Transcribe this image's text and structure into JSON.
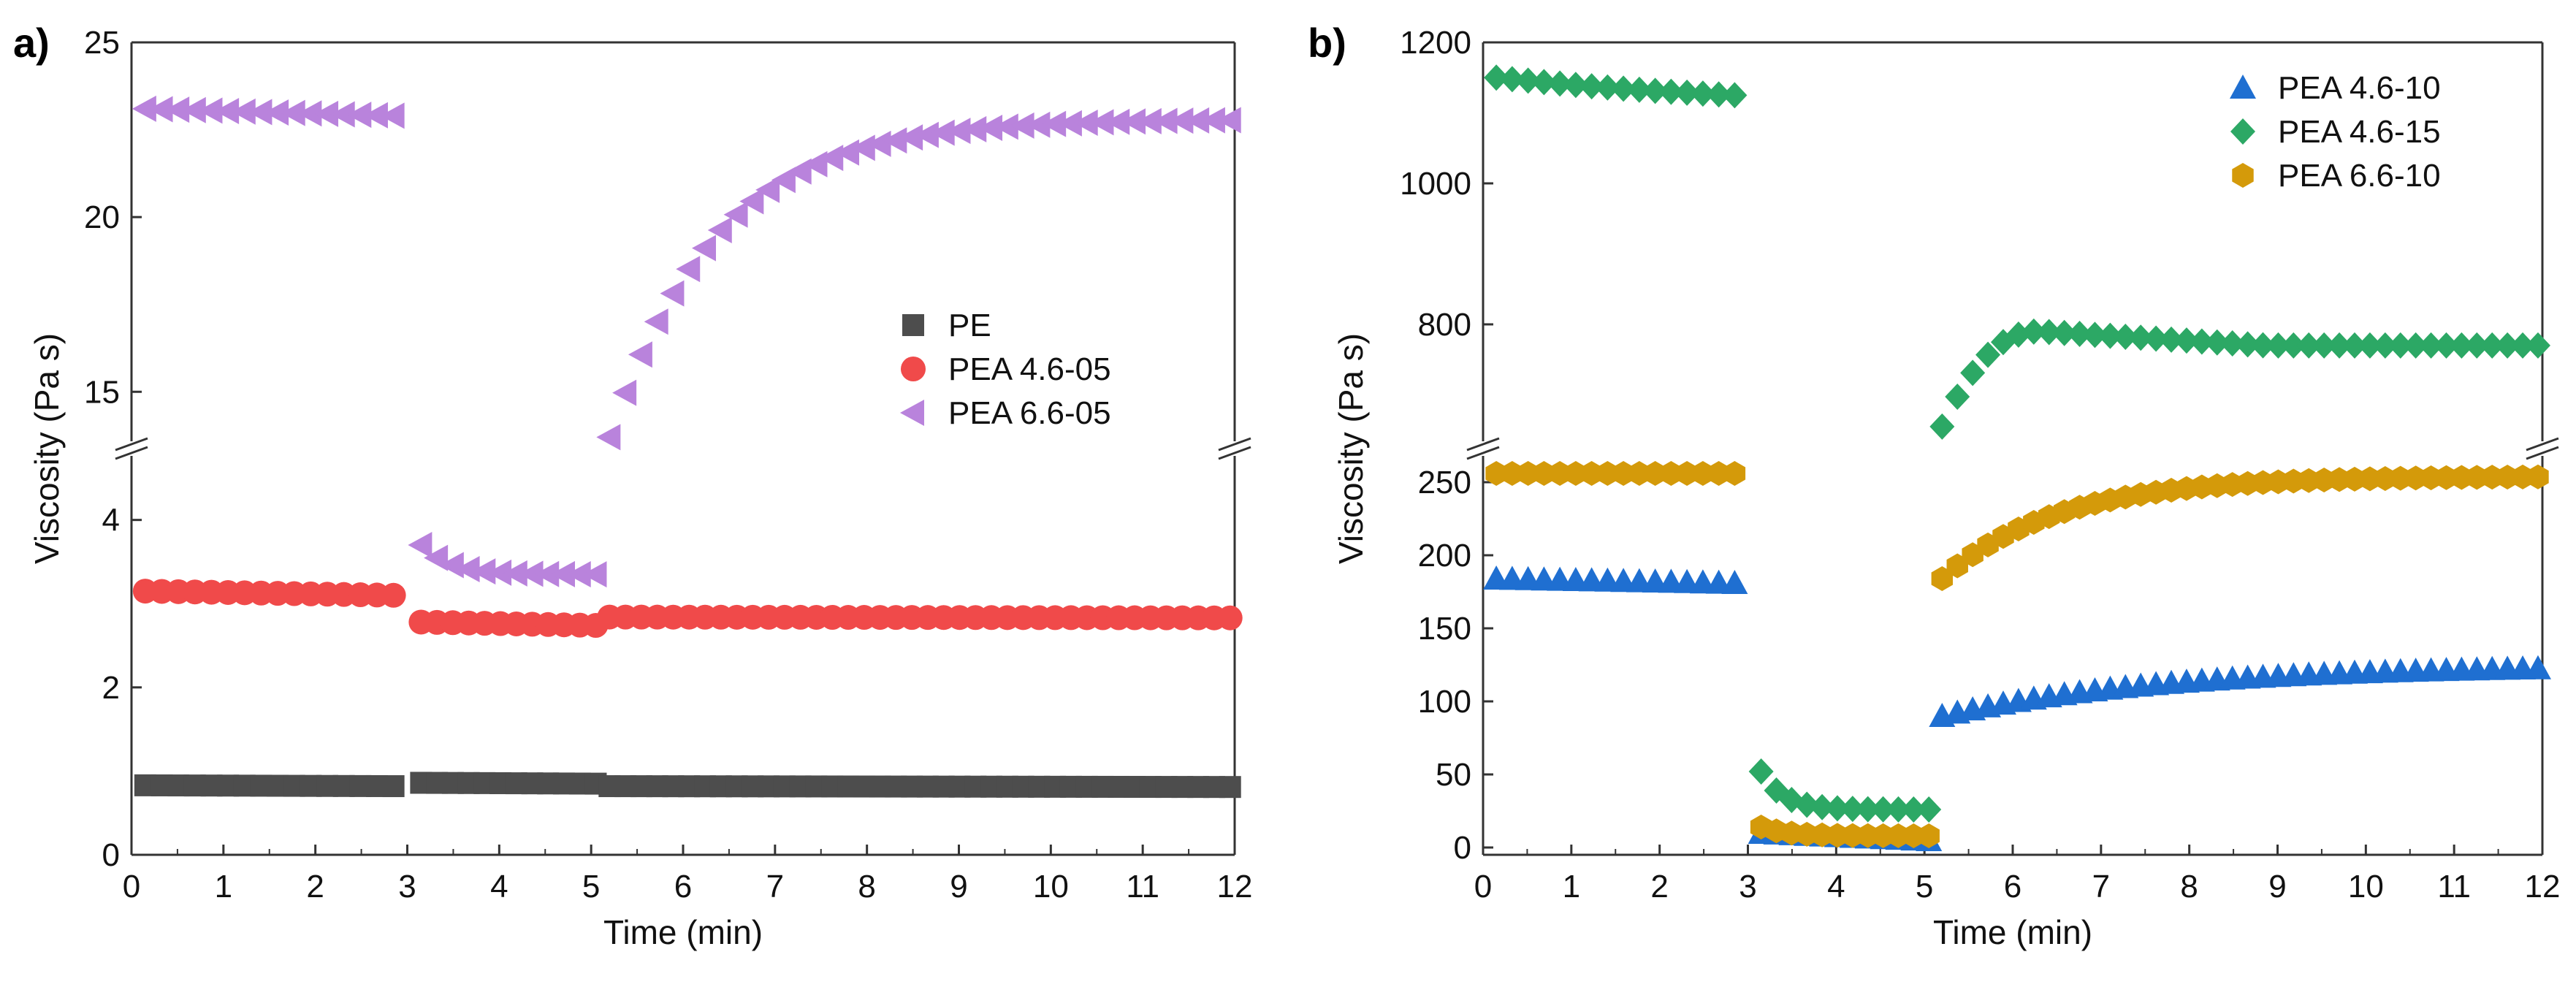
{
  "chart_data": [
    {
      "panel_label": "a)",
      "type": "scatter",
      "broken_y_axis": true,
      "xlabel": "Time (min)",
      "ylabel": "Viscosity (Pa s)",
      "xlim": [
        0,
        12
      ],
      "xticks": [
        "0",
        "1",
        "2",
        "3",
        "4",
        "5",
        "6",
        "7",
        "8",
        "9",
        "10",
        "11",
        "12"
      ],
      "y_segments": [
        {
          "range": [
            0,
            4.8
          ],
          "ticks": [
            0,
            2,
            4
          ]
        },
        {
          "range": [
            13.5,
            25
          ],
          "ticks": [
            15,
            20,
            25
          ]
        }
      ],
      "legend_position": "center-right",
      "series": [
        {
          "name": "PE",
          "marker": "square",
          "color": "#4d4d4d",
          "segments": [
            {
              "x0": 0.15,
              "x1": 2.85,
              "n": 16,
              "y": 0.83,
              "y_end": 0.82
            },
            {
              "x0": 3.15,
              "x1": 5.05,
              "n": 12,
              "y": 0.86,
              "y_end": 0.85
            },
            {
              "x0": 5.2,
              "x1": 11.95,
              "n": 40,
              "y": 0.82,
              "y_end": 0.81
            }
          ]
        },
        {
          "name": "PEA 4.6-05",
          "marker": "circle",
          "color": "#f04a4a",
          "segments": [
            {
              "x0": 0.15,
              "x1": 2.85,
              "n": 16,
              "y": 3.15,
              "y_end": 3.1
            },
            {
              "x0": 3.15,
              "x1": 5.05,
              "n": 12,
              "y": 2.78,
              "y_end": 2.74
            },
            {
              "x0": 5.2,
              "x1": 11.95,
              "n": 40,
              "y": 2.84,
              "y_end": 2.83
            }
          ]
        },
        {
          "name": "PEA 6.6-05",
          "marker": "triangle-left",
          "color": "#b983dc",
          "segments": [
            {
              "x0": 0.15,
              "x1": 2.85,
              "n": 16,
              "y": 23.1,
              "y_end": 22.9
            },
            {
              "x0": 3.15,
              "x1": 5.05,
              "n": 12,
              "y": 3.7,
              "y_end": 3.35,
              "decay": 0.3
            },
            {
              "x0": 5.2,
              "x1": 11.95,
              "n": 40,
              "y": 13.7,
              "y_end": 22.8,
              "plateau": 22.8,
              "tau": 1.15
            }
          ]
        }
      ]
    },
    {
      "panel_label": "b)",
      "type": "scatter",
      "broken_y_axis": true,
      "xlabel": "Time (min)",
      "ylabel": "Viscosity (Pa s)",
      "xlim": [
        0,
        12
      ],
      "xticks": [
        "0",
        "1",
        "2",
        "3",
        "4",
        "5",
        "6",
        "7",
        "8",
        "9",
        "10",
        "11",
        "12"
      ],
      "y_segments": [
        {
          "range": [
            -5,
            270
          ],
          "ticks": [
            0,
            50,
            100,
            150,
            200,
            250
          ]
        },
        {
          "range": [
            630,
            1200
          ],
          "ticks": [
            800,
            1000,
            1200
          ]
        }
      ],
      "legend_position": "top-right",
      "series": [
        {
          "name": "PEA 4.6-10",
          "marker": "triangle-up",
          "color": "#1f6fd1",
          "segments": [
            {
              "x0": 0.15,
              "x1": 2.85,
              "n": 16,
              "y": 184,
              "y_end": 181
            },
            {
              "x0": 3.15,
              "x1": 5.05,
              "n": 12,
              "y": 10,
              "y_end": 5
            },
            {
              "x0": 5.2,
              "x1": 11.95,
              "n": 40,
              "y": 90,
              "y_end": 123,
              "plateau": 125,
              "tau": 2.5
            }
          ]
        },
        {
          "name": "PEA 4.6-15",
          "marker": "diamond",
          "color": "#2ca865",
          "segments": [
            {
              "x0": 0.15,
              "x1": 2.85,
              "n": 16,
              "y": 1150,
              "y_end": 1125,
              "dip": 1122
            },
            {
              "x0": 3.15,
              "x1": 5.05,
              "n": 12,
              "y": 52,
              "y_end": 26,
              "decay": 0.25
            },
            {
              "x0": 5.2,
              "x1": 11.95,
              "n": 40,
              "y": 655,
              "y_end": 770,
              "peak": 790,
              "peak_x": 6.3
            }
          ]
        },
        {
          "name": "PEA 6.6-10",
          "marker": "hexagon",
          "color": "#d49a0a",
          "segments": [
            {
              "x0": 0.15,
              "x1": 2.85,
              "n": 16,
              "y": 256,
              "y_end": 256
            },
            {
              "x0": 3.15,
              "x1": 5.05,
              "n": 12,
              "y": 14,
              "y_end": 8,
              "decay": 0.3
            },
            {
              "x0": 5.2,
              "x1": 11.95,
              "n": 40,
              "y": 184,
              "y_end": 252,
              "plateau": 254,
              "tau": 1.3
            }
          ]
        }
      ]
    }
  ]
}
